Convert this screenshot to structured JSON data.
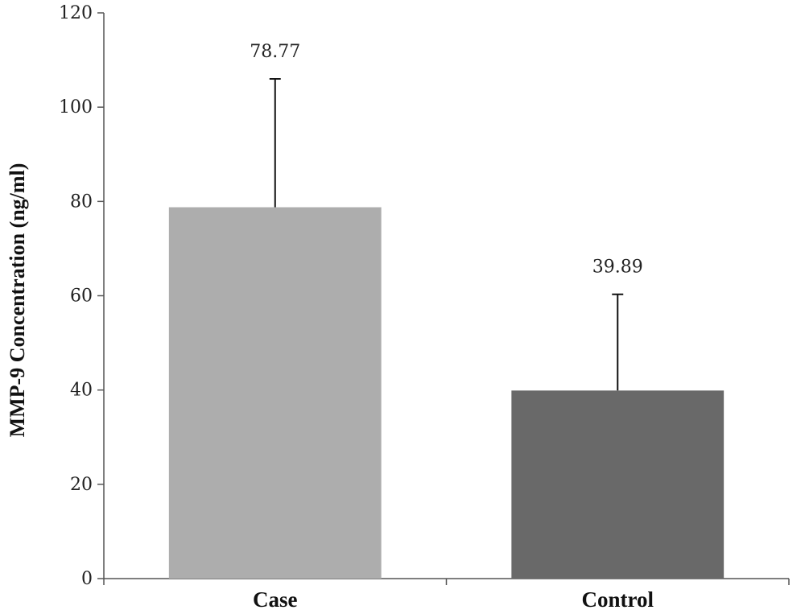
{
  "chart_data": {
    "type": "bar",
    "categories": [
      "Case",
      "Control"
    ],
    "values": [
      78.77,
      39.89
    ],
    "error_upper": [
      106,
      60.3
    ],
    "data_labels": [
      "78.77",
      "39.89"
    ],
    "bar_colors": [
      "#adadad",
      "#696969"
    ],
    "title": "",
    "xlabel": "",
    "ylabel": "MMP-9 Concentration (ng/ml)",
    "ylim": [
      0,
      120
    ],
    "yticks": [
      0,
      20,
      40,
      60,
      80,
      100,
      120
    ],
    "grid": false,
    "legend": "none"
  }
}
